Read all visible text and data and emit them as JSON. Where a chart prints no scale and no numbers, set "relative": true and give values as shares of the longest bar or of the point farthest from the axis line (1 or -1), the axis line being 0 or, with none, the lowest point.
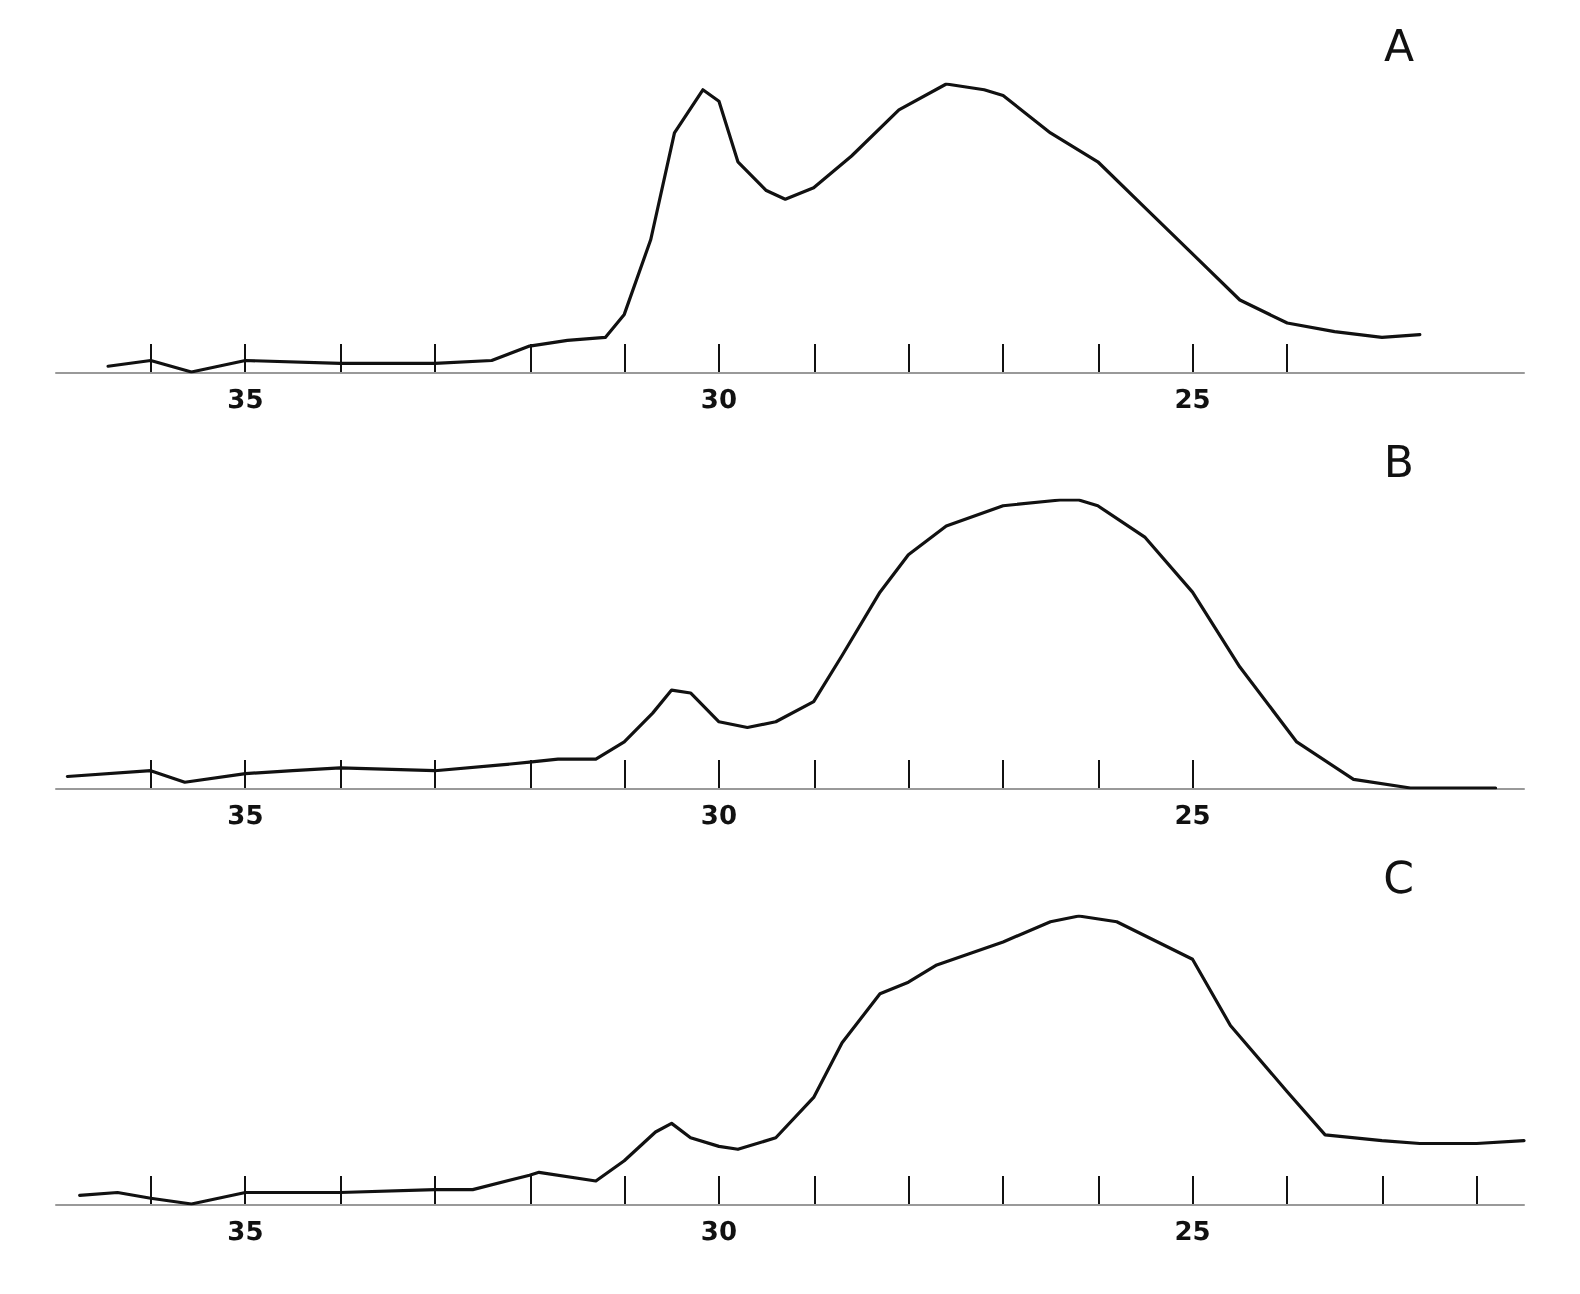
{
  "chart_data": [
    {
      "type": "line",
      "title": "A",
      "relative": true,
      "xlim": [
        37,
        21.5
      ],
      "xticks": [
        {
          "value": 36,
          "label": null
        },
        35,
        {
          "value": 34,
          "label": null
        },
        {
          "value": 33,
          "label": null
        },
        {
          "value": 32,
          "label": null
        },
        {
          "value": 31,
          "label": null
        },
        30,
        {
          "value": 29,
          "label": null
        },
        {
          "value": 28,
          "label": null
        },
        {
          "value": 27,
          "label": null
        },
        {
          "value": 26,
          "label": null
        },
        25,
        {
          "value": 24,
          "label": null
        }
      ],
      "grid": false,
      "marker": "none",
      "line_style": "solid",
      "series": [
        {
          "color": "#111111",
          "x": [
            36.45,
            36,
            35.57,
            35,
            34,
            33,
            32.4,
            32,
            31.6,
            31.2,
            31,
            30.72,
            30.47,
            30.17,
            30,
            29.8,
            29.5,
            29.3,
            29,
            28.6,
            28.1,
            27.6,
            27.2,
            27,
            26.5,
            26,
            25.5,
            25,
            24.5,
            24,
            23.5,
            23,
            22.6
          ],
          "values": [
            0.02,
            0.04,
            0,
            0.04,
            0.03,
            0.03,
            0.04,
            0.09,
            0.11,
            0.12,
            0.2,
            0.46,
            0.83,
            0.98,
            0.94,
            0.73,
            0.63,
            0.6,
            0.64,
            0.75,
            0.91,
            1,
            0.98,
            0.96,
            0.83,
            0.73,
            0.57,
            0.41,
            0.25,
            0.17,
            0.14,
            0.12,
            0.13
          ]
        }
      ]
    },
    {
      "type": "line",
      "title": "B",
      "relative": true,
      "xlim": [
        37,
        21.5
      ],
      "xticks": [
        {
          "value": 36,
          "label": null
        },
        35,
        {
          "value": 34,
          "label": null
        },
        {
          "value": 33,
          "label": null
        },
        {
          "value": 32,
          "label": null
        },
        {
          "value": 31,
          "label": null
        },
        30,
        {
          "value": 29,
          "label": null
        },
        {
          "value": 28,
          "label": null
        },
        {
          "value": 27,
          "label": null
        },
        {
          "value": 26,
          "label": null
        },
        25
      ],
      "grid": false,
      "marker": "none",
      "line_style": "solid",
      "series": [
        {
          "color": "#111111",
          "x": [
            36.88,
            36,
            35.64,
            35,
            34.5,
            34,
            33,
            32.3,
            32,
            31.7,
            31.3,
            31,
            30.7,
            30.5,
            30.3,
            30,
            29.7,
            29.4,
            29,
            28.7,
            28.3,
            28,
            27.6,
            27,
            26.4,
            26.2,
            26,
            25.5,
            25,
            24.5,
            23.9,
            23.3,
            22.7,
            21.8
          ],
          "values": [
            0.04,
            0.06,
            0.02,
            0.05,
            0.06,
            0.07,
            0.06,
            0.08,
            0.09,
            0.1,
            0.1,
            0.16,
            0.26,
            0.34,
            0.33,
            0.23,
            0.21,
            0.23,
            0.3,
            0.46,
            0.68,
            0.81,
            0.91,
            0.98,
            1,
            1,
            0.98,
            0.87,
            0.68,
            0.42,
            0.16,
            0.03,
            0,
            0
          ]
        }
      ]
    },
    {
      "type": "line",
      "title": "C",
      "relative": true,
      "xlim": [
        37,
        21.5
      ],
      "xticks": [
        {
          "value": 36,
          "label": null
        },
        35,
        {
          "value": 34,
          "label": null
        },
        {
          "value": 33,
          "label": null
        },
        {
          "value": 32,
          "label": null
        },
        {
          "value": 31,
          "label": null
        },
        30,
        {
          "value": 29,
          "label": null
        },
        {
          "value": 28,
          "label": null
        },
        {
          "value": 27,
          "label": null
        },
        {
          "value": 26,
          "label": null
        },
        25,
        {
          "value": 24,
          "label": null
        },
        {
          "value": 23,
          "label": null
        },
        {
          "value": 22,
          "label": null
        }
      ],
      "grid": false,
      "marker": "none",
      "line_style": "solid",
      "series": [
        {
          "color": "#111111",
          "x": [
            36.75,
            36.35,
            36,
            35.57,
            35,
            34,
            33,
            32.6,
            32,
            31.9,
            31.3,
            31,
            30.67,
            30.5,
            30.3,
            30,
            29.8,
            29.4,
            29,
            28.7,
            28.3,
            28,
            27.7,
            27,
            26.5,
            26.2,
            25.8,
            25,
            24.6,
            24,
            23.6,
            23,
            22.6,
            22,
            21.5
          ],
          "values": [
            0.03,
            0.04,
            0.02,
            0,
            0.04,
            0.04,
            0.05,
            0.05,
            0.1,
            0.11,
            0.08,
            0.15,
            0.25,
            0.28,
            0.23,
            0.2,
            0.19,
            0.23,
            0.37,
            0.56,
            0.73,
            0.77,
            0.83,
            0.91,
            0.98,
            1,
            0.98,
            0.85,
            0.62,
            0.39,
            0.24,
            0.22,
            0.21,
            0.21,
            0.22
          ]
        }
      ]
    }
  ]
}
